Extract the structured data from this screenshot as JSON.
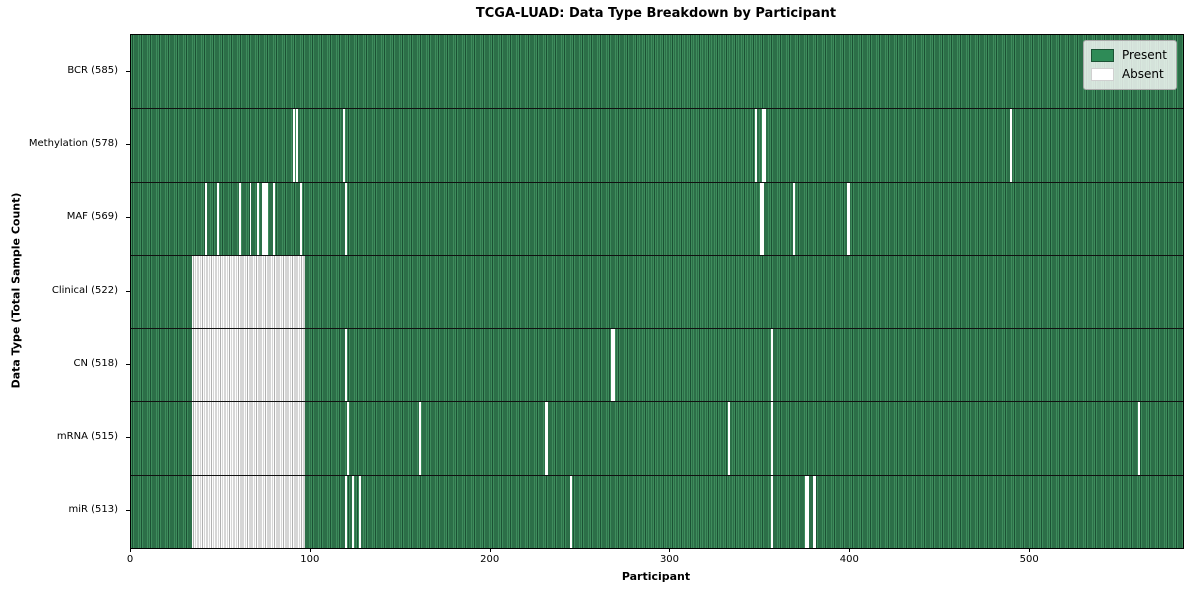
{
  "title": "TCGA-LUAD: Data Type Breakdown by Participant",
  "xlabel": "Participant",
  "ylabel": "Data Type (Total Sample Count)",
  "legend": {
    "present_label": "Present",
    "absent_label": "Absent"
  },
  "colors": {
    "present": "#2e8b57",
    "present_stripe_light": "#3e8c5c",
    "present_stripe_dark": "#1b5234",
    "absent": "#ffffff",
    "absent_edge": "#b0b0b0",
    "legend_bg": "rgba(255,255,255,0.8)"
  },
  "chart_data": {
    "type": "heatmap",
    "title": "TCGA-LUAD: Data Type Breakdown by Participant",
    "xlabel": "Participant",
    "ylabel": "Data Type (Total Sample Count)",
    "legend": [
      "Present",
      "Absent"
    ],
    "legend_position": "upper right",
    "grid": false,
    "total_participants": 585,
    "x_ticks": [
      0,
      100,
      200,
      300,
      400,
      500
    ],
    "xlim": [
      0,
      585
    ],
    "rows": [
      {
        "label": "BCR (585)",
        "data_type": "BCR",
        "present_count": 585,
        "absent_count": 0,
        "absent_runs": []
      },
      {
        "label": "Methylation (578)",
        "data_type": "Methylation",
        "present_count": 578,
        "absent_count": 7,
        "absent_runs": [
          [
            90,
            1
          ],
          [
            92,
            1
          ],
          [
            118,
            1
          ],
          [
            347,
            1
          ],
          [
            351,
            1
          ],
          [
            352,
            1
          ],
          [
            489,
            1
          ]
        ]
      },
      {
        "label": "MAF (569)",
        "data_type": "MAF",
        "present_count": 569,
        "absent_count": 16,
        "absent_runs": [
          [
            41,
            1
          ],
          [
            48,
            1
          ],
          [
            60,
            1
          ],
          [
            66,
            1
          ],
          [
            70,
            1
          ],
          [
            73,
            3
          ],
          [
            79,
            1
          ],
          [
            94,
            1
          ],
          [
            119,
            1
          ],
          [
            350,
            2
          ],
          [
            368,
            1
          ],
          [
            398,
            2
          ]
        ]
      },
      {
        "label": "Clinical (522)",
        "data_type": "Clinical",
        "present_count": 522,
        "absent_count": 63,
        "absent_runs": [
          [
            34,
            63
          ]
        ]
      },
      {
        "label": "CN (518)",
        "data_type": "CN",
        "present_count": 518,
        "absent_count": 67,
        "absent_runs": [
          [
            34,
            63
          ],
          [
            119,
            1
          ],
          [
            267,
            2
          ],
          [
            356,
            1
          ]
        ]
      },
      {
        "label": "mRNA (515)",
        "data_type": "mRNA",
        "present_count": 515,
        "absent_count": 70,
        "absent_runs": [
          [
            34,
            63
          ],
          [
            120,
            1
          ],
          [
            160,
            1
          ],
          [
            230,
            2
          ],
          [
            332,
            1
          ],
          [
            356,
            1
          ],
          [
            560,
            1
          ]
        ]
      },
      {
        "label": "miR (513)",
        "data_type": "miR",
        "present_count": 513,
        "absent_count": 72,
        "absent_runs": [
          [
            34,
            63
          ],
          [
            119,
            1
          ],
          [
            123,
            1
          ],
          [
            127,
            1
          ],
          [
            244,
            1
          ],
          [
            356,
            1
          ],
          [
            375,
            2
          ],
          [
            379,
            2
          ]
        ]
      }
    ]
  }
}
